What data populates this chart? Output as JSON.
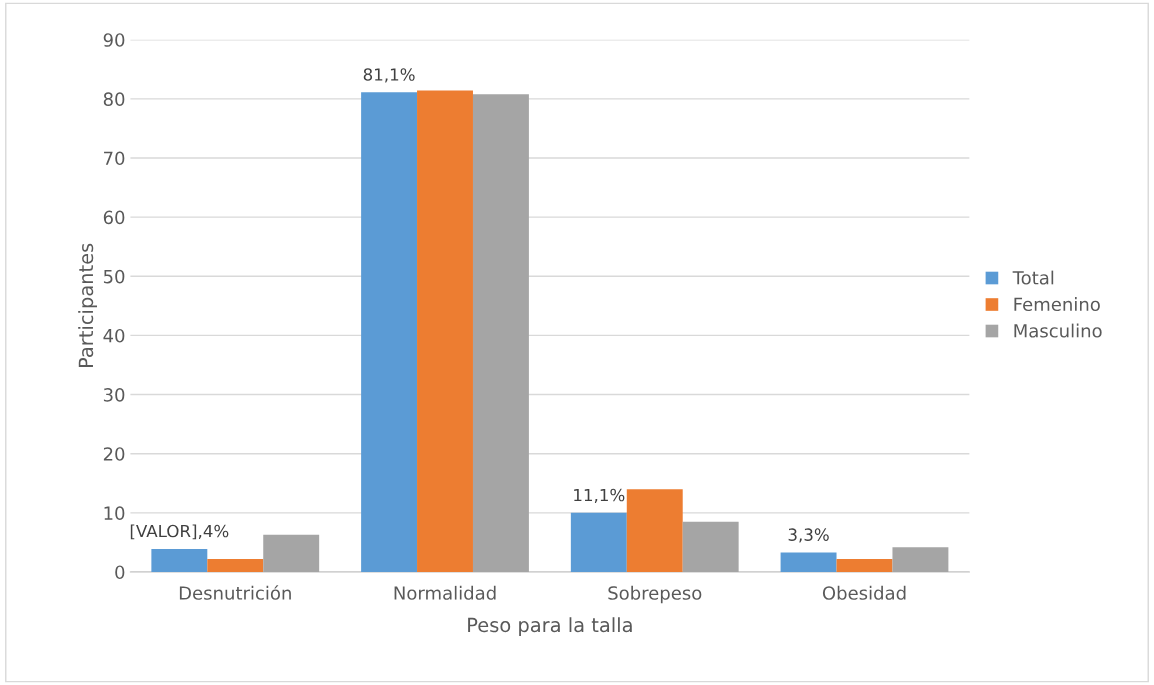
{
  "chart_data": {
    "type": "bar",
    "xlabel": "Peso para la talla",
    "ylabel": "Participantes",
    "categories": [
      "Desnutrición",
      "Normalidad",
      "Sobrepeso",
      "Obesidad"
    ],
    "series": [
      {
        "name": "Total",
        "color": "#5b9bd5",
        "values": [
          3.9,
          81.1,
          10.0,
          3.3
        ]
      },
      {
        "name": "Femenino",
        "color": "#ed7d31",
        "values": [
          2.2,
          81.4,
          14.0,
          2.2
        ]
      },
      {
        "name": "Masculino",
        "color": "#a5a5a5",
        "values": [
          6.3,
          80.8,
          8.5,
          4.2
        ]
      }
    ],
    "annotations": [
      "[VALOR],4%",
      "81,1%",
      "11,1%",
      "3,3%"
    ],
    "ylim": [
      0,
      90
    ],
    "yticks": [
      0,
      10,
      20,
      30,
      40,
      50,
      60,
      70,
      80,
      90
    ],
    "grid": "y",
    "legend": "right"
  }
}
